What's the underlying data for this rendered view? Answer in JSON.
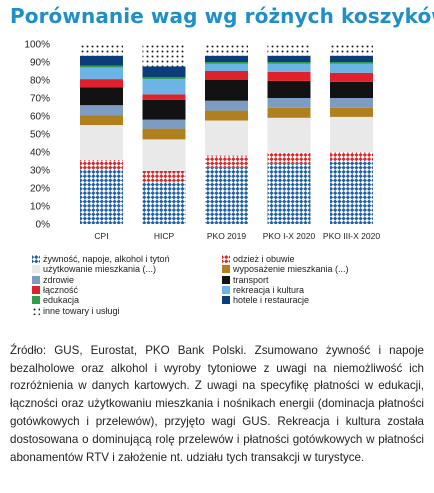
{
  "colors": {
    "title": "#1f8fc6"
  },
  "chart_data": {
    "type": "bar",
    "stacked": true,
    "title": "Porównanie wag wg różnych koszyków",
    "xlabel": "",
    "ylabel": "",
    "ylim": [
      0,
      100
    ],
    "yticks": [
      "0%",
      "10%",
      "20%",
      "30%",
      "40%",
      "50%",
      "60%",
      "70%",
      "80%",
      "90%",
      "100%"
    ],
    "grid": false,
    "legend_position": "bottom",
    "categories": [
      "CPI",
      "HICP",
      "PKO 2019",
      "PKO I-X 2020",
      "PKO III-X 2020"
    ],
    "series": [
      {
        "name": "żywność, napoje, alkohol i tytoń",
        "color": "#1f5fa8",
        "pattern": "check",
        "values": [
          30.5,
          23.5,
          31.5,
          33.5,
          34.5
        ]
      },
      {
        "name": "odzież i obuwie",
        "color": "#d62828",
        "pattern": "check",
        "values": [
          5.0,
          6.0,
          6.5,
          6.0,
          5.5
        ]
      },
      {
        "name": "użytkowanie mieszkania (...)",
        "color": "#e9e9e9",
        "pattern": "solid",
        "values": [
          19.5,
          17.5,
          19.5,
          19.5,
          19.5
        ]
      },
      {
        "name": "wyposażenie mieszkania (...)",
        "color": "#b0801f",
        "pattern": "solid",
        "values": [
          5.5,
          6.0,
          5.5,
          5.5,
          5.0
        ]
      },
      {
        "name": "zdrowie",
        "color": "#7d9cc4",
        "pattern": "solid",
        "values": [
          5.5,
          5.0,
          5.5,
          5.5,
          5.5
        ]
      },
      {
        "name": "transport",
        "color": "#121212",
        "pattern": "solid",
        "values": [
          10.0,
          11.0,
          11.5,
          9.5,
          9.0
        ]
      },
      {
        "name": "łączność",
        "color": "#e0202a",
        "pattern": "solid",
        "values": [
          4.5,
          3.0,
          5.0,
          5.0,
          5.0
        ]
      },
      {
        "name": "rekreacja i kultura",
        "color": "#6cb4e6",
        "pattern": "solid",
        "values": [
          6.5,
          8.5,
          4.0,
          4.5,
          5.0
        ]
      },
      {
        "name": "edukacja",
        "color": "#2f9e46",
        "pattern": "solid",
        "values": [
          1.0,
          1.0,
          1.0,
          1.0,
          1.0
        ]
      },
      {
        "name": "hotele i restauracje",
        "color": "#0a3d7a",
        "pattern": "solid",
        "values": [
          5.5,
          6.0,
          3.5,
          3.5,
          3.5
        ]
      },
      {
        "name": "inne towary i usługi",
        "color": "#1a1a1a",
        "pattern": "dots",
        "values": [
          6.5,
          12.5,
          6.5,
          6.5,
          6.5
        ]
      }
    ]
  },
  "source_text": "Źródło: GUS, Eurostat, PKO Bank Polski. Zsumowano żywność i napoje bezalholowe oraz alkohol i wyroby tytoniowe z uwagi na niemożliwość ich rozróżnienia w danych kartowych. Z uwagi na specyfikę płatności w edukacji, łączności oraz użytkowaniu mieszkania i nośnikach energii (dominacja płatności gotówkowych i przelewów), przyjęto wagi GUS. Rekreacja i kultura została dostosowana o dominującą rolę przelewów i płatności gotówkowych w płatności abonamentów RTV i założenie nt. udziału tych transakcji w turystyce."
}
